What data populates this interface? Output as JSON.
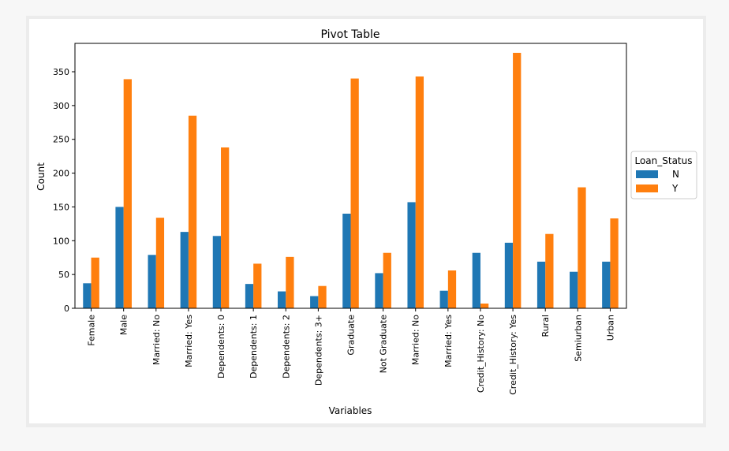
{
  "chart_data": {
    "type": "bar",
    "title": "Pivot Table",
    "xlabel": "Variables",
    "ylabel": "Count",
    "ylim": [
      0,
      392
    ],
    "yticks": [
      0,
      50,
      100,
      150,
      200,
      250,
      300,
      350
    ],
    "grid": false,
    "legend": {
      "title": "Loan_Status",
      "placement": "right"
    },
    "categories": [
      "Female",
      "Male",
      "Married: No",
      "Married: Yes",
      "Dependents: 0",
      "Dependents: 1",
      "Dependents: 2",
      "Dependents: 3+",
      "Graduate",
      "Not Graduate",
      "Married: No",
      "Married: Yes",
      "Credit_History: No",
      "Credit_History: Yes",
      "Rural",
      "Semiurban",
      "Urban"
    ],
    "series": [
      {
        "name": "N",
        "color": "#1f77b4",
        "values": [
          37,
          150,
          79,
          113,
          107,
          36,
          25,
          18,
          140,
          52,
          157,
          26,
          82,
          97,
          69,
          54,
          69
        ]
      },
      {
        "name": "Y",
        "color": "#ff7f0e",
        "values": [
          75,
          339,
          134,
          285,
          238,
          66,
          76,
          33,
          340,
          82,
          343,
          56,
          7,
          378,
          110,
          179,
          133
        ]
      }
    ]
  }
}
